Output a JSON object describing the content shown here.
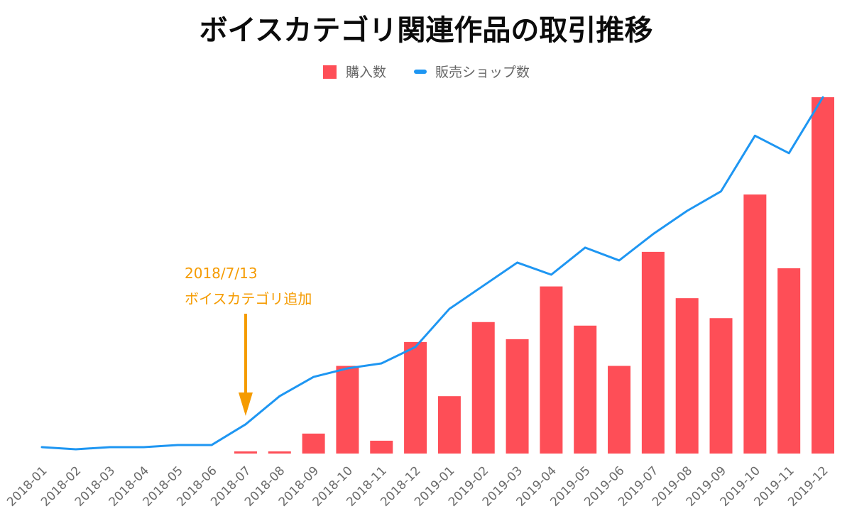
{
  "chart_data": {
    "type": "bar",
    "title": "ボイスカテゴリ関連作品の取引推移",
    "xlabel": "",
    "ylabel": "",
    "categories": [
      "2018-01",
      "2018-02",
      "2018-03",
      "2018-04",
      "2018-05",
      "2018-06",
      "2018-07",
      "2018-08",
      "2018-09",
      "2018-10",
      "2018-11",
      "2018-12",
      "2019-01",
      "2019-02",
      "2019-03",
      "2019-04",
      "2019-05",
      "2019-06",
      "2019-07",
      "2019-08",
      "2019-09",
      "2019-10",
      "2019-11",
      "2019-12"
    ],
    "ylim": [
      0,
      100
    ],
    "grid": false,
    "legend_position": "top-center",
    "series": [
      {
        "name": "購入数",
        "type": "bar",
        "color": "#fe4e57",
        "values": [
          0,
          0,
          0,
          0,
          0,
          0,
          0.6,
          0.6,
          5.6,
          24.6,
          3.6,
          31.3,
          16.1,
          36.9,
          32.1,
          46.9,
          35.9,
          24.6,
          56.6,
          43.6,
          38.0,
          72.7,
          52.0,
          100.0
        ]
      },
      {
        "name": "販売ショップ数",
        "type": "line",
        "color": "#1e96f2",
        "values": [
          1.8,
          1.2,
          1.8,
          1.8,
          2.4,
          2.4,
          8.2,
          16.1,
          21.5,
          23.9,
          25.3,
          29.9,
          40.6,
          47.1,
          53.6,
          50.2,
          57.8,
          54.2,
          61.6,
          68.1,
          73.6,
          89.2,
          84.3,
          100.0
        ]
      }
    ],
    "annotations": [
      {
        "category": "2018-07",
        "lines": [
          "2018/7/13",
          "ボイスカテゴリ追加"
        ],
        "color": "#f59b00"
      }
    ]
  }
}
